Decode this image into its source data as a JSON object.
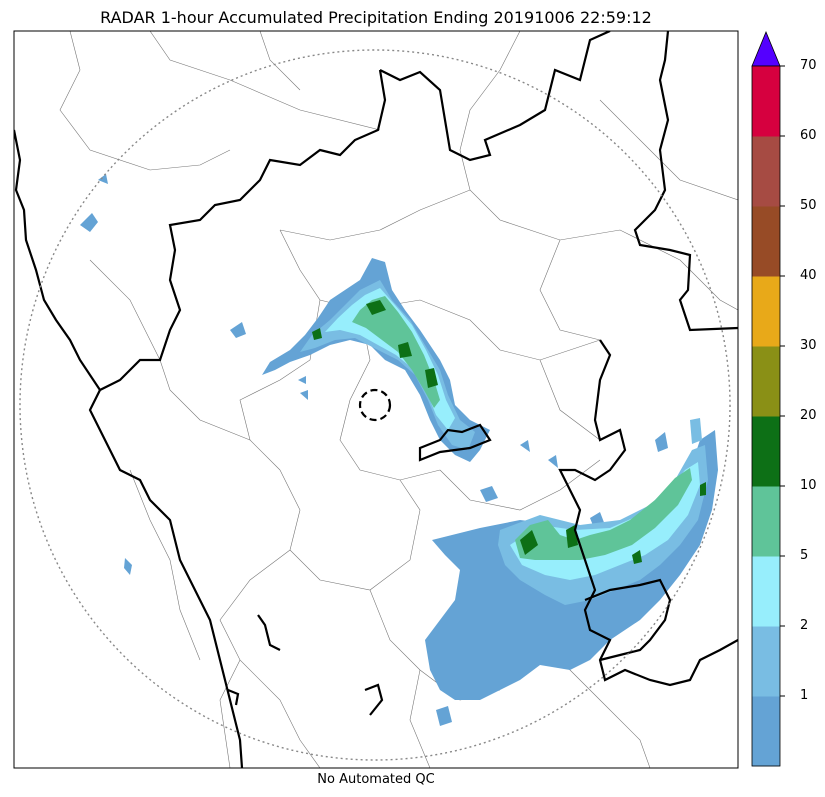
{
  "title": "RADAR 1-hour Accumulated Precipitation Ending 20191006 22:59:12",
  "footer": "No Automated QC",
  "colorbar": {
    "ticks": [
      "1",
      "2",
      "5",
      "10",
      "20",
      "30",
      "40",
      "50",
      "60",
      "70"
    ],
    "colors": [
      "#64a3d5",
      "#79bde3",
      "#97eefc",
      "#5fc499",
      "#0d7016",
      "#8a9016",
      "#e8a919",
      "#974b26",
      "#a64b43",
      "#d6003f"
    ],
    "extend_color": "#5400ff"
  },
  "map": {
    "range_ring": "dotted",
    "radar_site_marker": "dashed-circle"
  }
}
